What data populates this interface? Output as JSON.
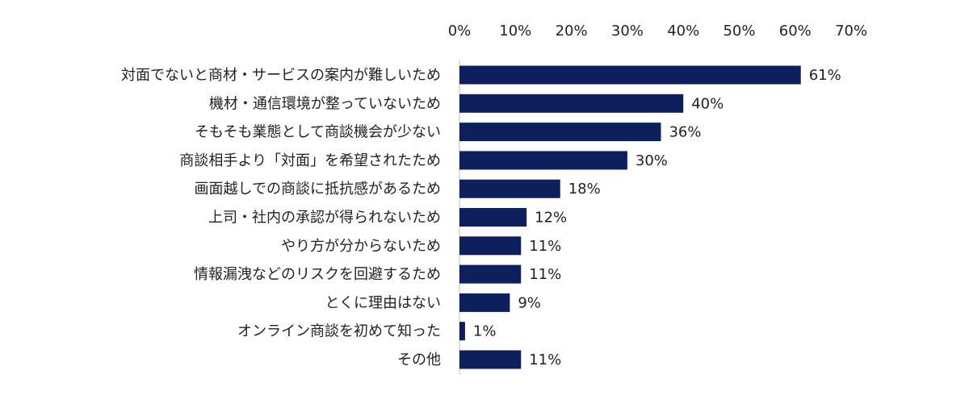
{
  "chart_data": {
    "type": "bar",
    "orientation": "horizontal",
    "categories": [
      "対面でないと商材・サービスの案内が難しいため",
      "機材・通信環境が整っていないため",
      "そもそも業態として商談機会が少ない",
      "商談相手より「対面」を希望されたため",
      "画面越しでの商談に抵抗感があるため",
      "上司・社内の承認が得られないため",
      "やり方が分からないため",
      "情報漏洩などのリスクを回避するため",
      "とくに理由はない",
      "オンライン商談を初めて知った",
      "その他"
    ],
    "values": [
      61,
      40,
      36,
      30,
      18,
      12,
      11,
      11,
      9,
      1,
      11
    ],
    "value_labels": [
      "61%",
      "40%",
      "36%",
      "30%",
      "18%",
      "12%",
      "11%",
      "11%",
      "9%",
      "1%",
      "11%"
    ],
    "xlim": [
      0,
      70
    ],
    "x_ticks": [
      0,
      10,
      20,
      30,
      40,
      50,
      60,
      70
    ],
    "x_tick_labels": [
      "0%",
      "10%",
      "20%",
      "30%",
      "40%",
      "50%",
      "60%",
      "70%"
    ],
    "axis_position": "top",
    "grid": false,
    "bar_color": "#0d1f5c",
    "axis_color": "#bfbfbf",
    "title": "",
    "xlabel": "",
    "ylabel": ""
  }
}
